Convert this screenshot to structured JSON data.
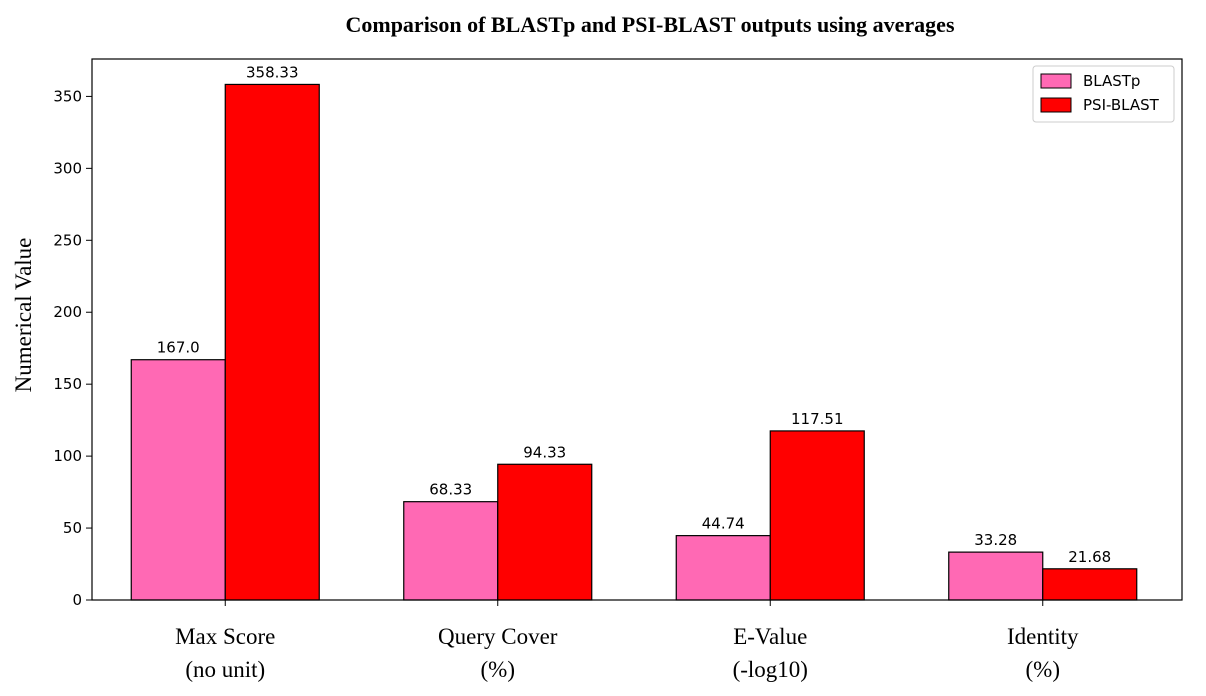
{
  "chart_data": {
    "type": "bar",
    "title": "Comparison of BLASTp and PSI-BLAST outputs using averages",
    "xlabel": "",
    "ylabel": "Numerical Value",
    "categories": [
      [
        "Max Score",
        "(no unit)"
      ],
      [
        "Query Cover",
        "(%)"
      ],
      [
        "E-Value",
        "(-log10)"
      ],
      [
        "Identity",
        "(%)"
      ]
    ],
    "series": [
      {
        "name": "BLASTp",
        "color": "#ff69b4",
        "values": [
          167.0,
          68.33,
          44.74,
          33.28
        ],
        "labels": [
          "167.0",
          "68.33",
          "44.74",
          "33.28"
        ]
      },
      {
        "name": "PSI-BLAST",
        "color": "#ff0000",
        "values": [
          358.33,
          94.33,
          117.51,
          21.68
        ],
        "labels": [
          "358.33",
          "94.33",
          "117.51",
          "21.68"
        ]
      }
    ],
    "ylim": [
      0,
      376
    ],
    "yticks": [
      0,
      50,
      100,
      150,
      200,
      250,
      300,
      350
    ],
    "grid": false,
    "legend_position": "top-right",
    "bar_edge_color": "#000000"
  }
}
